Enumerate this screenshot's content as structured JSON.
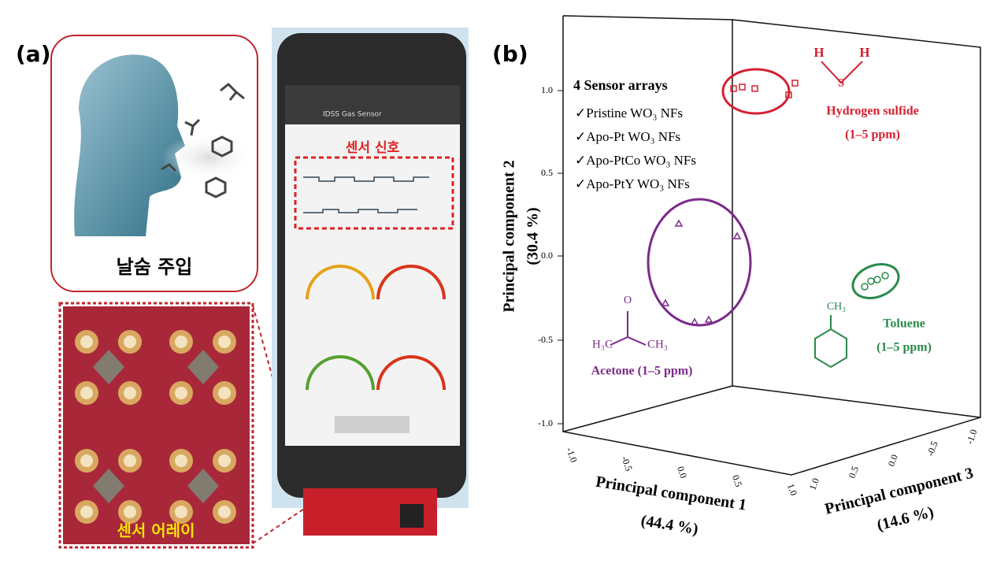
{
  "panel_a": {
    "label": "(a)",
    "breath_caption": "날숨 주입",
    "app_title": "IDSS Gas Sensor",
    "signal_label": "센서 신호",
    "array_label": "센서 어레이"
  },
  "panel_b": {
    "label": "(b)",
    "legend_title": "4 Sensor arrays",
    "legend_items": [
      "✓Pristine WO₃ NFs",
      "✓Apo-Pt WO₃ NFs",
      "✓Apo-PtCo WO₃ NFs",
      "✓Apo-PtY WO₃ NFs"
    ],
    "axis2_label": "Principal component 2",
    "axis2_percent": "(30.4 %)",
    "axis1_label": "Principal component 1",
    "axis1_percent": "(44.4 %)",
    "axis3_label": "Principal component 3",
    "axis3_percent": "(14.6 %)",
    "axis2_ticks": [
      "1.0",
      "0.5",
      "0.0",
      "-0.5",
      "-1.0"
    ],
    "axis1_ticks": [
      "-1.0",
      "-0.5",
      "0.0",
      "0.5",
      "1.0"
    ],
    "axis3_ticks": [
      "1.0",
      "0.5",
      "0.0",
      "-0.5",
      "-1.0"
    ],
    "h2s": {
      "name": "Hydrogen sulfide",
      "range": "(1–5 ppm)",
      "atoms": [
        "H",
        "S",
        "H"
      ]
    },
    "toluene": {
      "name": "Toluene",
      "range": "(1–5 ppm)",
      "group": "CH₃"
    },
    "acetone": {
      "name": "Acetone (1–5 ppm)",
      "atoms": [
        "O",
        "H₃C",
        "CH₃"
      ]
    }
  }
}
